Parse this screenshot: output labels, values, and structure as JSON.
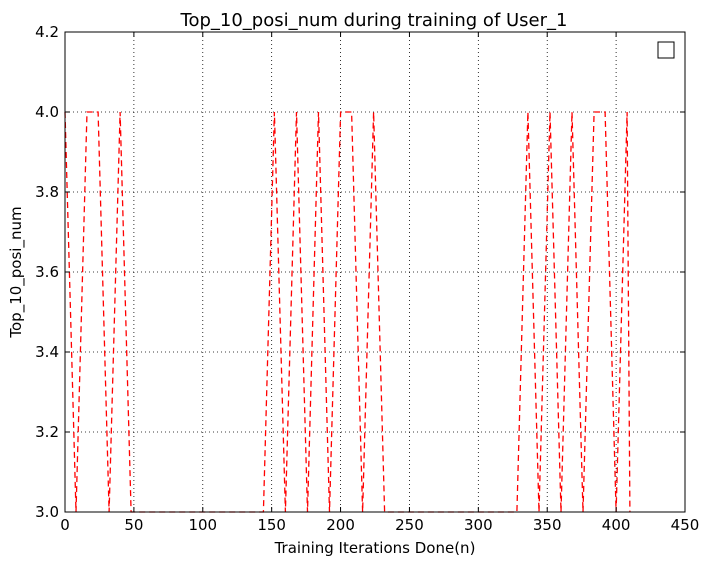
{
  "chart_data": {
    "type": "line",
    "title": "Top_10_posi_num during training of User_1",
    "xlabel": "Training Iterations Done(n)",
    "ylabel": "Top_10_posi_num",
    "xlim": [
      0,
      450
    ],
    "ylim": [
      3.0,
      4.2
    ],
    "xticks": [
      0,
      50,
      100,
      150,
      200,
      250,
      300,
      350,
      400,
      450
    ],
    "yticks": [
      3.0,
      3.2,
      3.4,
      3.6,
      3.8,
      4.0,
      4.2
    ],
    "grid": true,
    "legend": {
      "placement": "top-right",
      "entries": [
        ""
      ]
    },
    "series": [
      {
        "color": "#ff0000",
        "linestyle": "dashed",
        "x": [
          0,
          8,
          16,
          24,
          32,
          40,
          48,
          56,
          64,
          72,
          80,
          88,
          96,
          104,
          112,
          120,
          128,
          136,
          144,
          152,
          160,
          168,
          176,
          184,
          192,
          200,
          208,
          216,
          224,
          232,
          240,
          248,
          256,
          264,
          272,
          280,
          288,
          296,
          304,
          312,
          320,
          328,
          336,
          344,
          352,
          360,
          368,
          376,
          384,
          392,
          400,
          408,
          410
        ],
        "y": [
          4,
          3,
          4,
          4,
          3,
          4,
          3,
          3,
          3,
          3,
          3,
          3,
          3,
          3,
          3,
          3,
          3,
          3,
          3,
          4,
          3,
          4,
          3,
          4,
          3,
          4,
          4,
          3,
          4,
          3,
          3,
          3,
          3,
          3,
          3,
          3,
          3,
          3,
          3,
          3,
          3,
          3,
          4,
          3,
          4,
          3,
          4,
          3,
          4,
          4,
          3,
          4,
          3
        ]
      }
    ]
  }
}
